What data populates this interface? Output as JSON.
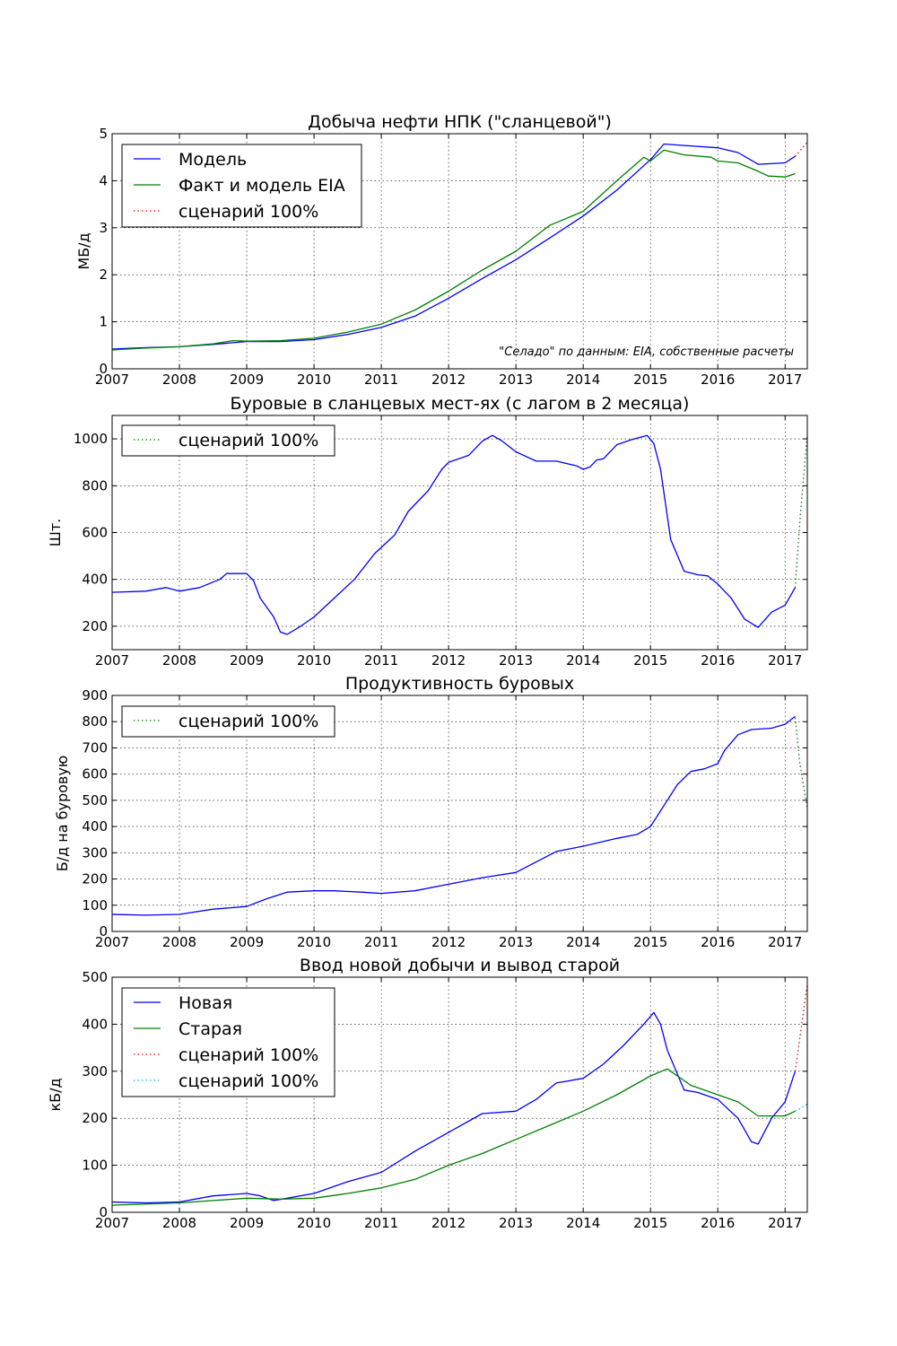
{
  "chart_data": [
    {
      "type": "line",
      "title": "Добыча нефти НПК (\"сланцевой\")",
      "ylabel": "МБ/д",
      "xlim": [
        2007,
        2017.33
      ],
      "ylim": [
        0,
        5
      ],
      "x_ticks": [
        2007,
        2008,
        2009,
        2010,
        2011,
        2012,
        2013,
        2014,
        2015,
        2016,
        2017
      ],
      "y_ticks": [
        0,
        1,
        2,
        3,
        4,
        5
      ],
      "grid": true,
      "legend_position": "top-left",
      "annotation": "\"Селадо\" по данным: EIA, собственные расчеты",
      "series": [
        {
          "name": "Модель",
          "color": "#0000ff",
          "style": "solid",
          "points": [
            [
              2007,
              0.42
            ],
            [
              2007.5,
              0.45
            ],
            [
              2008,
              0.47
            ],
            [
              2008.5,
              0.52
            ],
            [
              2009,
              0.58
            ],
            [
              2009.5,
              0.58
            ],
            [
              2010,
              0.62
            ],
            [
              2010.5,
              0.73
            ],
            [
              2011,
              0.88
            ],
            [
              2011.5,
              1.12
            ],
            [
              2012,
              1.5
            ],
            [
              2012.5,
              1.92
            ],
            [
              2013,
              2.32
            ],
            [
              2013.5,
              2.78
            ],
            [
              2014,
              3.25
            ],
            [
              2014.5,
              3.8
            ],
            [
              2015,
              4.45
            ],
            [
              2015.2,
              4.78
            ],
            [
              2015.5,
              4.75
            ],
            [
              2016,
              4.7
            ],
            [
              2016.3,
              4.6
            ],
            [
              2016.6,
              4.35
            ],
            [
              2017,
              4.38
            ],
            [
              2017.15,
              4.52
            ]
          ]
        },
        {
          "name": "Факт и модель EIA",
          "color": "#008000",
          "style": "solid",
          "points": [
            [
              2007,
              0.4
            ],
            [
              2007.5,
              0.44
            ],
            [
              2008,
              0.47
            ],
            [
              2008.5,
              0.53
            ],
            [
              2008.8,
              0.6
            ],
            [
              2009,
              0.59
            ],
            [
              2009.5,
              0.6
            ],
            [
              2010,
              0.65
            ],
            [
              2010.5,
              0.78
            ],
            [
              2011,
              0.95
            ],
            [
              2011.5,
              1.25
            ],
            [
              2012,
              1.65
            ],
            [
              2012.5,
              2.1
            ],
            [
              2013,
              2.5
            ],
            [
              2013.5,
              3.05
            ],
            [
              2014,
              3.35
            ],
            [
              2014.5,
              4.0
            ],
            [
              2014.9,
              4.5
            ],
            [
              2015,
              4.42
            ],
            [
              2015.2,
              4.65
            ],
            [
              2015.5,
              4.55
            ],
            [
              2015.9,
              4.5
            ],
            [
              2016,
              4.42
            ],
            [
              2016.3,
              4.38
            ],
            [
              2016.6,
              4.2
            ],
            [
              2016.75,
              4.1
            ],
            [
              2017,
              4.08
            ],
            [
              2017.15,
              4.15
            ]
          ]
        },
        {
          "name": "сценарий 100%",
          "color": "#ff0000",
          "style": "dotted",
          "points": [
            [
              2017.15,
              4.52
            ],
            [
              2017.33,
              4.82
            ]
          ]
        }
      ]
    },
    {
      "type": "line",
      "title": "Буровые в сланцевых мест-ях (с лагом в 2 месяца)",
      "ylabel": "Шт.",
      "xlim": [
        2007,
        2017.33
      ],
      "ylim": [
        100,
        1100
      ],
      "x_ticks": [
        2007,
        2008,
        2009,
        2010,
        2011,
        2012,
        2013,
        2014,
        2015,
        2016,
        2017
      ],
      "y_ticks": [
        200,
        400,
        600,
        800,
        1000
      ],
      "grid": true,
      "legend_position": "top-left",
      "series": [
        {
          "name": "",
          "color": "#0000ff",
          "style": "solid",
          "points": [
            [
              2007,
              345
            ],
            [
              2007.5,
              350
            ],
            [
              2007.8,
              365
            ],
            [
              2008,
              350
            ],
            [
              2008.3,
              365
            ],
            [
              2008.6,
              400
            ],
            [
              2008.7,
              425
            ],
            [
              2009,
              425
            ],
            [
              2009.1,
              395
            ],
            [
              2009.2,
              320
            ],
            [
              2009.4,
              240
            ],
            [
              2009.5,
              175
            ],
            [
              2009.6,
              165
            ],
            [
              2009.8,
              200
            ],
            [
              2010,
              240
            ],
            [
              2010.3,
              320
            ],
            [
              2010.6,
              400
            ],
            [
              2010.9,
              510
            ],
            [
              2011.2,
              590
            ],
            [
              2011.4,
              690
            ],
            [
              2011.7,
              780
            ],
            [
              2011.9,
              870
            ],
            [
              2012,
              900
            ],
            [
              2012.3,
              930
            ],
            [
              2012.5,
              990
            ],
            [
              2012.65,
              1015
            ],
            [
              2012.8,
              990
            ],
            [
              2013,
              945
            ],
            [
              2013.3,
              905
            ],
            [
              2013.6,
              905
            ],
            [
              2013.9,
              885
            ],
            [
              2014,
              870
            ],
            [
              2014.1,
              880
            ],
            [
              2014.2,
              910
            ],
            [
              2014.3,
              915
            ],
            [
              2014.5,
              975
            ],
            [
              2014.7,
              995
            ],
            [
              2014.95,
              1015
            ],
            [
              2015.05,
              980
            ],
            [
              2015.15,
              870
            ],
            [
              2015.3,
              570
            ],
            [
              2015.5,
              435
            ],
            [
              2015.7,
              420
            ],
            [
              2015.85,
              415
            ],
            [
              2016,
              380
            ],
            [
              2016.2,
              320
            ],
            [
              2016.4,
              230
            ],
            [
              2016.6,
              195
            ],
            [
              2016.8,
              260
            ],
            [
              2017,
              290
            ],
            [
              2017.15,
              365
            ]
          ]
        },
        {
          "name": "сценарий 100%",
          "color": "#008000",
          "style": "dotted",
          "points": [
            [
              2017.15,
              365
            ],
            [
              2017.22,
              650
            ],
            [
              2017.33,
              1020
            ]
          ]
        }
      ]
    },
    {
      "type": "line",
      "title": "Продуктивность буровых",
      "ylabel": "Б/д на буровую",
      "xlim": [
        2007,
        2017.33
      ],
      "ylim": [
        0,
        900
      ],
      "x_ticks": [
        2007,
        2008,
        2009,
        2010,
        2011,
        2012,
        2013,
        2014,
        2015,
        2016,
        2017
      ],
      "y_ticks": [
        0,
        100,
        200,
        300,
        400,
        500,
        600,
        700,
        800,
        900
      ],
      "grid": true,
      "legend_position": "top-left",
      "series": [
        {
          "name": "",
          "color": "#0000ff",
          "style": "solid",
          "points": [
            [
              2007,
              65
            ],
            [
              2007.5,
              62
            ],
            [
              2008,
              65
            ],
            [
              2008.5,
              85
            ],
            [
              2009,
              95
            ],
            [
              2009.3,
              125
            ],
            [
              2009.6,
              150
            ],
            [
              2010,
              155
            ],
            [
              2010.3,
              155
            ],
            [
              2010.7,
              150
            ],
            [
              2011,
              145
            ],
            [
              2011.5,
              155
            ],
            [
              2012,
              180
            ],
            [
              2012.5,
              205
            ],
            [
              2013,
              225
            ],
            [
              2013.3,
              265
            ],
            [
              2013.6,
              305
            ],
            [
              2014,
              325
            ],
            [
              2014.5,
              355
            ],
            [
              2014.8,
              370
            ],
            [
              2015,
              400
            ],
            [
              2015.2,
              480
            ],
            [
              2015.4,
              560
            ],
            [
              2015.6,
              610
            ],
            [
              2015.8,
              620
            ],
            [
              2016,
              640
            ],
            [
              2016.1,
              690
            ],
            [
              2016.3,
              750
            ],
            [
              2016.5,
              770
            ],
            [
              2016.8,
              775
            ],
            [
              2017,
              790
            ],
            [
              2017.15,
              820
            ]
          ]
        },
        {
          "name": "сценарий 100%",
          "color": "#008000",
          "style": "dotted",
          "points": [
            [
              2017.15,
              815
            ],
            [
              2017.22,
              640
            ],
            [
              2017.33,
              470
            ]
          ]
        }
      ]
    },
    {
      "type": "line",
      "title": "Ввод новой добычи и вывод старой",
      "ylabel": "кБ/д",
      "xlim": [
        2007,
        2017.33
      ],
      "ylim": [
        0,
        500
      ],
      "x_ticks": [
        2007,
        2008,
        2009,
        2010,
        2011,
        2012,
        2013,
        2014,
        2015,
        2016,
        2017
      ],
      "y_ticks": [
        0,
        100,
        200,
        300,
        400,
        500
      ],
      "grid": true,
      "legend_position": "top-left",
      "series": [
        {
          "name": "Новая",
          "color": "#0000ff",
          "style": "solid",
          "points": [
            [
              2007,
              22
            ],
            [
              2007.5,
              20
            ],
            [
              2008,
              22
            ],
            [
              2008.5,
              35
            ],
            [
              2009,
              40
            ],
            [
              2009.2,
              35
            ],
            [
              2009.4,
              25
            ],
            [
              2009.6,
              30
            ],
            [
              2010,
              40
            ],
            [
              2010.5,
              65
            ],
            [
              2011,
              85
            ],
            [
              2011.5,
              130
            ],
            [
              2012,
              170
            ],
            [
              2012.5,
              210
            ],
            [
              2013,
              215
            ],
            [
              2013.3,
              240
            ],
            [
              2013.6,
              275
            ],
            [
              2014,
              285
            ],
            [
              2014.3,
              315
            ],
            [
              2014.6,
              355
            ],
            [
              2014.9,
              400
            ],
            [
              2015.05,
              425
            ],
            [
              2015.15,
              400
            ],
            [
              2015.25,
              345
            ],
            [
              2015.5,
              260
            ],
            [
              2015.7,
              255
            ],
            [
              2016,
              240
            ],
            [
              2016.3,
              200
            ],
            [
              2016.5,
              150
            ],
            [
              2016.6,
              145
            ],
            [
              2016.8,
              200
            ],
            [
              2017,
              235
            ],
            [
              2017.15,
              300
            ]
          ]
        },
        {
          "name": "Старая",
          "color": "#008000",
          "style": "solid",
          "points": [
            [
              2007,
              15
            ],
            [
              2008,
              20
            ],
            [
              2008.5,
              25
            ],
            [
              2009,
              30
            ],
            [
              2009.5,
              28
            ],
            [
              2010,
              30
            ],
            [
              2010.5,
              40
            ],
            [
              2011,
              52
            ],
            [
              2011.5,
              70
            ],
            [
              2012,
              100
            ],
            [
              2012.5,
              125
            ],
            [
              2013,
              155
            ],
            [
              2013.5,
              185
            ],
            [
              2014,
              215
            ],
            [
              2014.5,
              250
            ],
            [
              2015,
              290
            ],
            [
              2015.25,
              305
            ],
            [
              2015.6,
              270
            ],
            [
              2016,
              250
            ],
            [
              2016.3,
              235
            ],
            [
              2016.6,
              205
            ],
            [
              2017,
              205
            ],
            [
              2017.15,
              215
            ]
          ]
        },
        {
          "name": "сценарий 100%",
          "color": "#ff0000",
          "style": "dotted",
          "points": [
            [
              2017.15,
              300
            ],
            [
              2017.33,
              485
            ]
          ]
        },
        {
          "name": "сценарий 100%",
          "color": "#00bfbf",
          "style": "dotted",
          "points": [
            [
              2017.15,
              215
            ],
            [
              2017.33,
              230
            ]
          ]
        }
      ]
    }
  ]
}
